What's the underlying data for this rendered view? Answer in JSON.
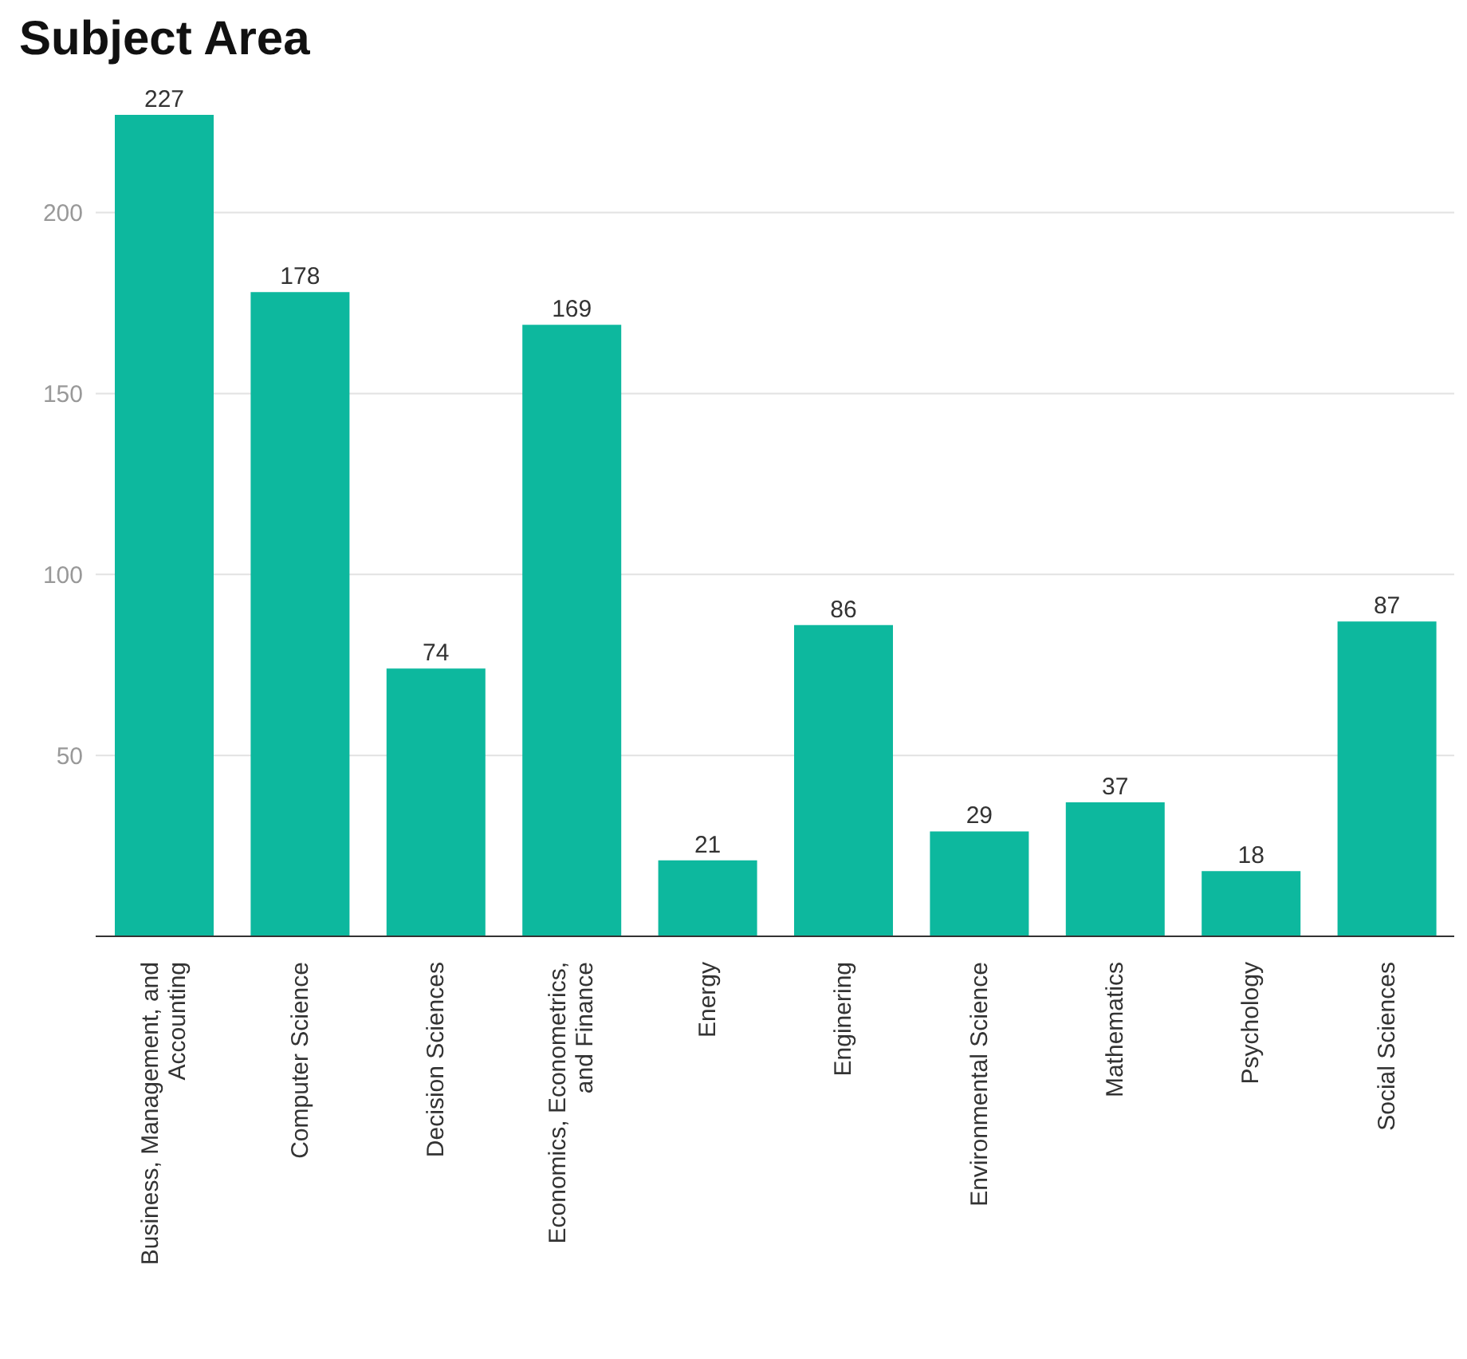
{
  "chart_data": {
    "type": "bar",
    "title": "Subject Area",
    "categories": [
      "Business, Management, and Accounting",
      "Computer Science",
      "Decision Sciences",
      "Economics, Econometrics, and Finance",
      "Energy",
      "Enginering",
      "Environmental Science",
      "Mathematics",
      "Psychology",
      "Social Sciences"
    ],
    "values": [
      227,
      178,
      74,
      169,
      21,
      86,
      29,
      37,
      18,
      87
    ],
    "color": "#0db89e",
    "ylim": [
      0,
      227
    ],
    "yticks": [
      50,
      100,
      150,
      200
    ],
    "grid": "y",
    "data_labels": true
  }
}
